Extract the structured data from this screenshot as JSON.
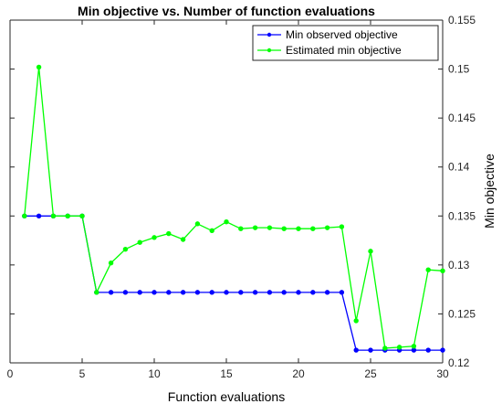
{
  "chart_data": {
    "type": "line",
    "title": "Min objective vs. Number of function evaluations",
    "xlabel": "Function evaluations",
    "ylabel": "Min objective",
    "xlim": [
      0,
      30
    ],
    "ylim": [
      0.12,
      0.155
    ],
    "x_ticks": [
      0,
      5,
      10,
      15,
      20,
      25,
      30
    ],
    "y_ticks": [
      0.12,
      0.125,
      0.13,
      0.135,
      0.14,
      0.145,
      0.15,
      0.155
    ],
    "y_axis_side": "right",
    "grid": false,
    "legend_position": "top-right",
    "x": [
      1,
      2,
      3,
      4,
      5,
      6,
      7,
      8,
      9,
      10,
      11,
      12,
      13,
      14,
      15,
      16,
      17,
      18,
      19,
      20,
      21,
      22,
      23,
      24,
      25,
      26,
      27,
      28,
      29,
      30
    ],
    "series": [
      {
        "name": "Min observed objective",
        "color": "#0000ff",
        "values": [
          0.135,
          0.135,
          0.135,
          0.135,
          0.135,
          0.1272,
          0.1272,
          0.1272,
          0.1272,
          0.1272,
          0.1272,
          0.1272,
          0.1272,
          0.1272,
          0.1272,
          0.1272,
          0.1272,
          0.1272,
          0.1272,
          0.1272,
          0.1272,
          0.1272,
          0.1272,
          0.1213,
          0.1213,
          0.1213,
          0.1213,
          0.1213,
          0.1213,
          0.1213
        ]
      },
      {
        "name": "Estimated min objective",
        "color": "#00ff00",
        "values": [
          0.135,
          0.1502,
          0.135,
          0.135,
          0.135,
          0.1272,
          0.1302,
          0.1316,
          0.1323,
          0.1328,
          0.1332,
          0.1326,
          0.1342,
          0.1335,
          0.1344,
          0.1337,
          0.1338,
          0.1338,
          0.1337,
          0.1337,
          0.1337,
          0.1338,
          0.1339,
          0.1243,
          0.1314,
          0.1215,
          0.1216,
          0.1217,
          0.1295,
          0.1294
        ]
      }
    ]
  }
}
